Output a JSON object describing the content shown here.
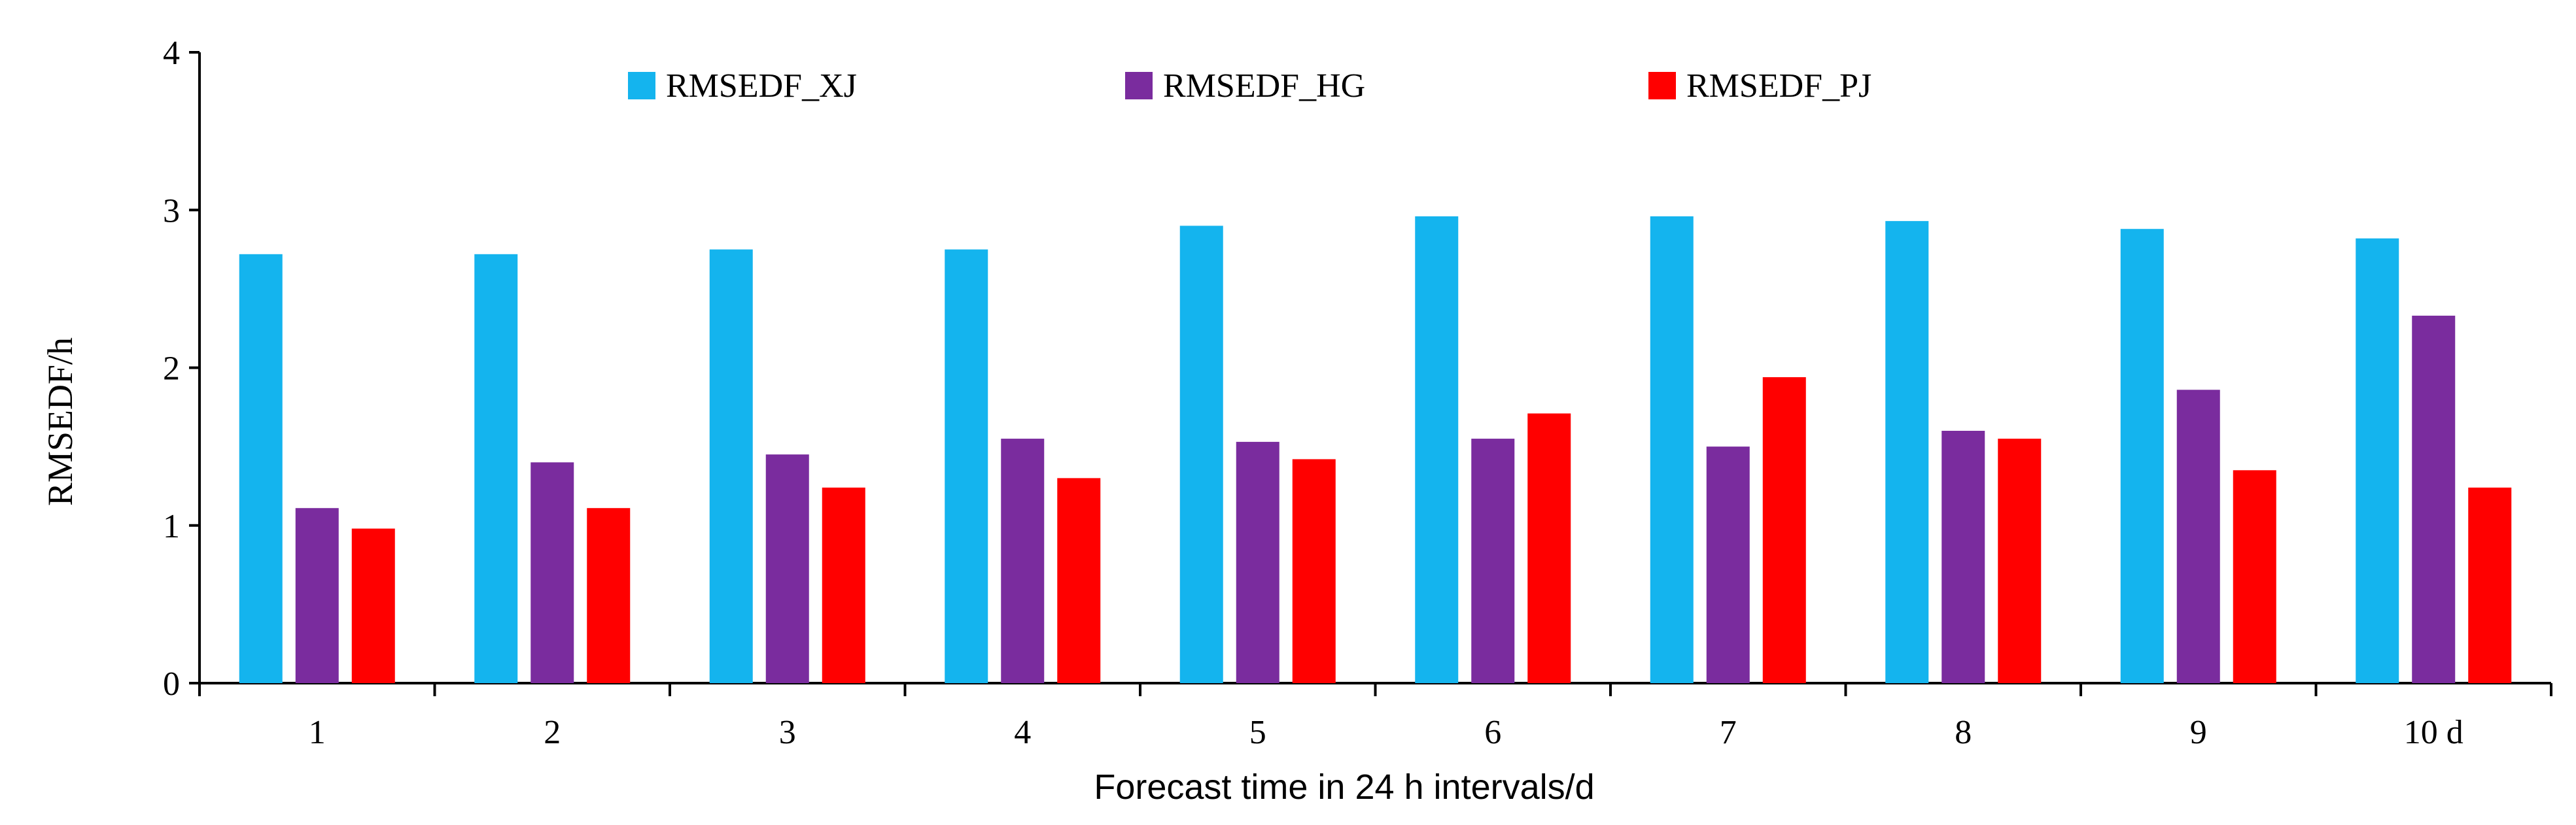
{
  "chart_data": {
    "type": "bar",
    "categories": [
      "1",
      "2",
      "3",
      "4",
      "5",
      "6",
      "7",
      "8",
      "9",
      "10 d"
    ],
    "series": [
      {
        "name": "RMSEDF_XJ",
        "color": "#14B4EE",
        "values": [
          2.72,
          2.72,
          2.75,
          2.75,
          2.9,
          2.96,
          2.96,
          2.93,
          2.88,
          2.82
        ]
      },
      {
        "name": "RMSEDF_HG",
        "color": "#7A2C9E",
        "values": [
          1.11,
          1.4,
          1.45,
          1.55,
          1.53,
          1.55,
          1.5,
          1.6,
          1.86,
          2.33
        ]
      },
      {
        "name": "RMSEDF_PJ",
        "color": "#FF0000",
        "values": [
          0.98,
          1.11,
          1.24,
          1.3,
          1.42,
          1.71,
          1.94,
          1.55,
          1.35,
          1.24
        ]
      }
    ],
    "yticks": [
      "0",
      "1",
      "2",
      "3",
      "4"
    ],
    "ylim": [
      0,
      4
    ],
    "xlabel": "Forecast time in 24 h intervals/d",
    "ylabel": "RMSEDF/h",
    "legend_position": "top",
    "grid": false
  }
}
